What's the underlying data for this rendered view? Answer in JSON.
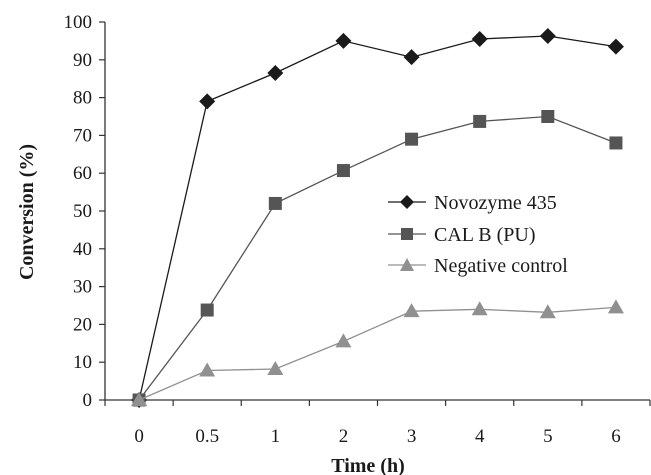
{
  "chart_data": {
    "type": "line",
    "title": "",
    "xlabel": "Time (h)",
    "ylabel": "Conversion (%)",
    "categories": [
      "0",
      "0.5",
      "1",
      "2",
      "3",
      "4",
      "5",
      "6"
    ],
    "ylim": [
      0,
      100
    ],
    "yticks": [
      "0",
      "10",
      "20",
      "30",
      "40",
      "50",
      "60",
      "70",
      "80",
      "90",
      "100"
    ],
    "grid": false,
    "legend_position": "right",
    "series": [
      {
        "name": "Novozyme 435",
        "marker": "diamond",
        "color": "#1a1a1a",
        "values": [
          0,
          79,
          86.5,
          95,
          90.7,
          95.5,
          96.3,
          93.5
        ]
      },
      {
        "name": "CAL B (PU)",
        "marker": "square",
        "color": "#555555",
        "values": [
          0,
          23.8,
          52,
          60.7,
          69,
          73.7,
          75,
          68
        ]
      },
      {
        "name": "Negative control",
        "marker": "triangle",
        "color": "#909090",
        "values": [
          0,
          7.8,
          8.2,
          15.5,
          23.5,
          24,
          23.2,
          24.5
        ]
      }
    ]
  }
}
